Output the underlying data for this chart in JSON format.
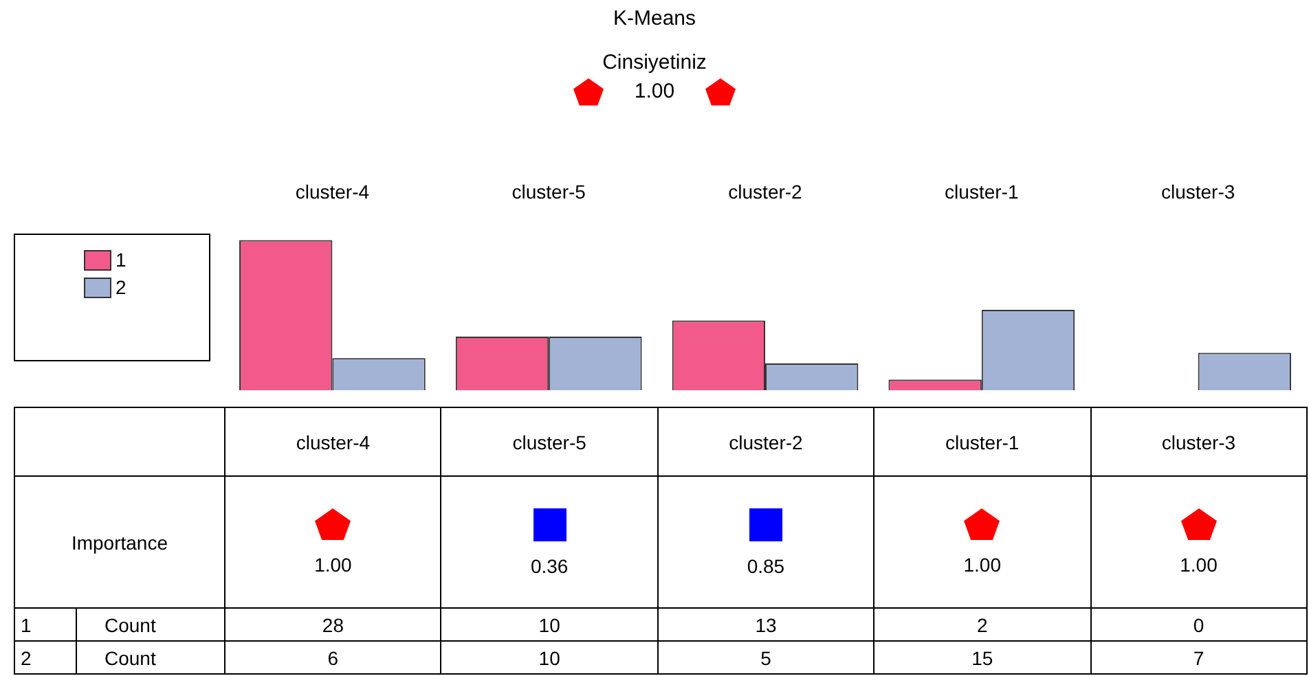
{
  "chart_data": {
    "type": "bar",
    "title": "K-Means",
    "subtitle": "Cinsiyetiniz",
    "categories": [
      "cluster-4",
      "cluster-5",
      "cluster-2",
      "cluster-1",
      "cluster-3"
    ],
    "series": [
      {
        "name": "1",
        "color": "#f25a8c",
        "values": [
          28,
          10,
          13,
          2,
          0
        ]
      },
      {
        "name": "2",
        "color": "#a3b3d6",
        "values": [
          6,
          10,
          5,
          15,
          7
        ]
      }
    ],
    "data_labels": true,
    "legend": "left",
    "annotations": [
      "1.00",
      "Importance",
      "1.00",
      "0.36",
      "0.85",
      "1.00",
      "1.00",
      "Count"
    ]
  }
}
